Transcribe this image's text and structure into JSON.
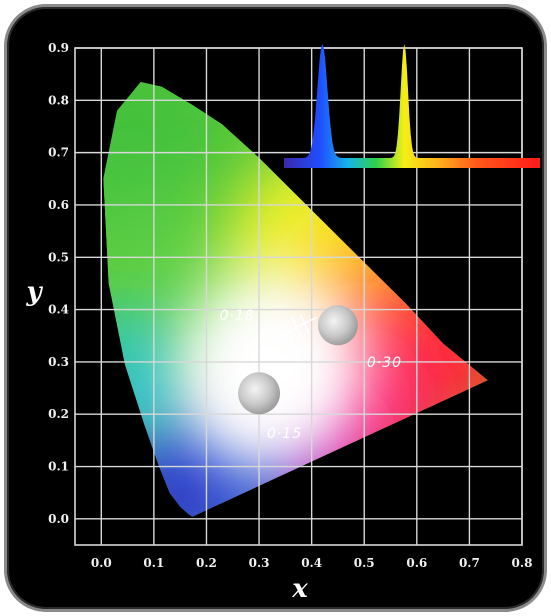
{
  "chart_data": {
    "type": "scatter",
    "title": "",
    "xlabel": "x",
    "ylabel": "y",
    "xlim": [
      -0.05,
      0.8
    ],
    "ylim": [
      -0.05,
      0.9
    ],
    "grid": true,
    "x_ticks": [
      "0.0",
      "0.1",
      "0.2",
      "0.3",
      "0.4",
      "0.5",
      "0.6",
      "0.7",
      "0.8"
    ],
    "y_ticks": [
      "0.0",
      "0.1",
      "0.2",
      "0.3",
      "0.4",
      "0.5",
      "0.6",
      "0.7",
      "0.8",
      "0.9"
    ],
    "gamut_boundary": [
      {
        "x": 0.175,
        "y": 0.005
      },
      {
        "x": 0.172,
        "y": 0.005
      },
      {
        "x": 0.166,
        "y": 0.009
      },
      {
        "x": 0.15,
        "y": 0.023
      },
      {
        "x": 0.13,
        "y": 0.05
      },
      {
        "x": 0.11,
        "y": 0.1
      },
      {
        "x": 0.082,
        "y": 0.18
      },
      {
        "x": 0.045,
        "y": 0.295
      },
      {
        "x": 0.014,
        "y": 0.45
      },
      {
        "x": 0.004,
        "y": 0.65
      },
      {
        "x": 0.03,
        "y": 0.78
      },
      {
        "x": 0.075,
        "y": 0.835
      },
      {
        "x": 0.115,
        "y": 0.826
      },
      {
        "x": 0.175,
        "y": 0.79
      },
      {
        "x": 0.23,
        "y": 0.754
      },
      {
        "x": 0.3,
        "y": 0.69
      },
      {
        "x": 0.37,
        "y": 0.62
      },
      {
        "x": 0.44,
        "y": 0.55
      },
      {
        "x": 0.51,
        "y": 0.48
      },
      {
        "x": 0.58,
        "y": 0.41
      },
      {
        "x": 0.65,
        "y": 0.335
      },
      {
        "x": 0.735,
        "y": 0.265
      }
    ],
    "white_points": [
      {
        "x": 0.36,
        "y": 0.36
      },
      {
        "x": 0.45,
        "y": 0.37
      },
      {
        "x": 0.3,
        "y": 0.24
      }
    ],
    "annotations": [
      {
        "text": "0·18",
        "x": 0.225,
        "y": 0.38
      },
      {
        "text": "0·30",
        "x": 0.505,
        "y": 0.29
      },
      {
        "text": "0·15",
        "x": 0.315,
        "y": 0.155
      }
    ],
    "inset_spectrum": {
      "peaks": [
        {
          "position": 0.15,
          "height": 1.0
        },
        {
          "position": 0.47,
          "height": 1.0
        }
      ]
    },
    "colors": {
      "background": "#000000",
      "grid": "#d8d8d8",
      "frame_border": "#8a8a8a"
    }
  }
}
